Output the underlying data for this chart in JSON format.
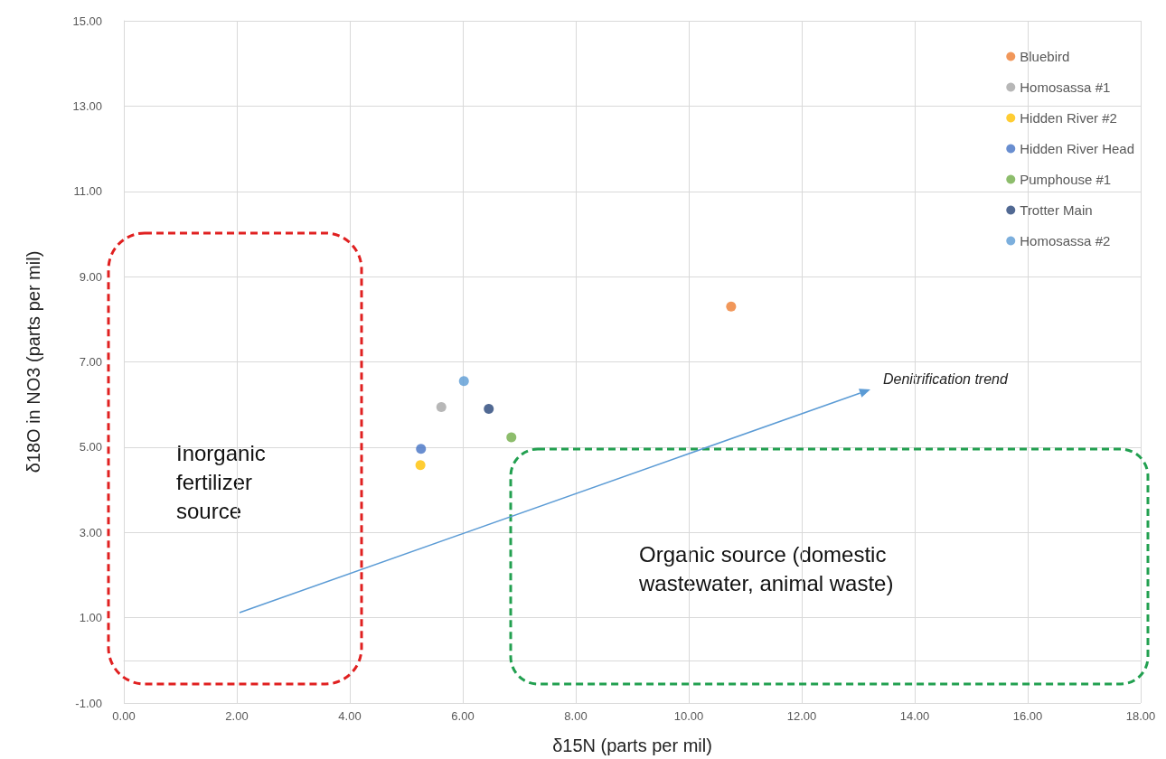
{
  "chart_data": {
    "type": "scatter",
    "xlabel": "δ15N (parts per mil)",
    "ylabel": "δ18O in NO3 (parts per mil)",
    "xlim": [
      0,
      18
    ],
    "ylim": [
      -1,
      15
    ],
    "xticks": [
      {
        "value": 0,
        "label": "0.00"
      },
      {
        "value": 2,
        "label": "2.00"
      },
      {
        "value": 4,
        "label": "4.00"
      },
      {
        "value": 6,
        "label": "6.00"
      },
      {
        "value": 8,
        "label": "8.00"
      },
      {
        "value": 10,
        "label": "10.00"
      },
      {
        "value": 12,
        "label": "12.00"
      },
      {
        "value": 14,
        "label": "14.00"
      },
      {
        "value": 16,
        "label": "16.00"
      },
      {
        "value": 18,
        "label": "18.00"
      }
    ],
    "yticks": [
      {
        "value": -1,
        "label": "-1.00"
      },
      {
        "value": 1,
        "label": "1.00"
      },
      {
        "value": 3,
        "label": "3.00"
      },
      {
        "value": 5,
        "label": "5.00"
      },
      {
        "value": 7,
        "label": "7.00"
      },
      {
        "value": 9,
        "label": "9.00"
      },
      {
        "value": 11,
        "label": "11.00"
      },
      {
        "value": 13,
        "label": "13.00"
      },
      {
        "value": 15,
        "label": "15.00"
      }
    ],
    "grid": true,
    "legend": "top right",
    "marker": "circle",
    "series": [
      {
        "name": "Bluebird",
        "color": "#ed7d31",
        "x": [
          10.75
        ],
        "values": [
          8.3
        ]
      },
      {
        "name": "Homosassa #1",
        "color": "#a5a5a5",
        "x": [
          5.62
        ],
        "values": [
          5.94
        ]
      },
      {
        "name": "Hidden River #2",
        "color": "#ffc000",
        "x": [
          5.25
        ],
        "values": [
          4.58
        ]
      },
      {
        "name": "Hidden River Head",
        "color": "#4472c4",
        "x": [
          5.26
        ],
        "values": [
          4.96
        ]
      },
      {
        "name": "Pumphouse #1",
        "color": "#70ad47",
        "x": [
          6.86
        ],
        "values": [
          5.23
        ]
      },
      {
        "name": "Trotter Main",
        "color": "#264478",
        "x": [
          6.46
        ],
        "values": [
          5.9
        ]
      },
      {
        "name": "Homosassa #2",
        "color": "#5b9bd5",
        "x": [
          6.02
        ],
        "values": [
          6.55
        ]
      }
    ],
    "annotations": [
      "Inorganic fertilizer source",
      "Organic source (domestic wastewater, animal waste)",
      "Denitrification trend"
    ]
  }
}
